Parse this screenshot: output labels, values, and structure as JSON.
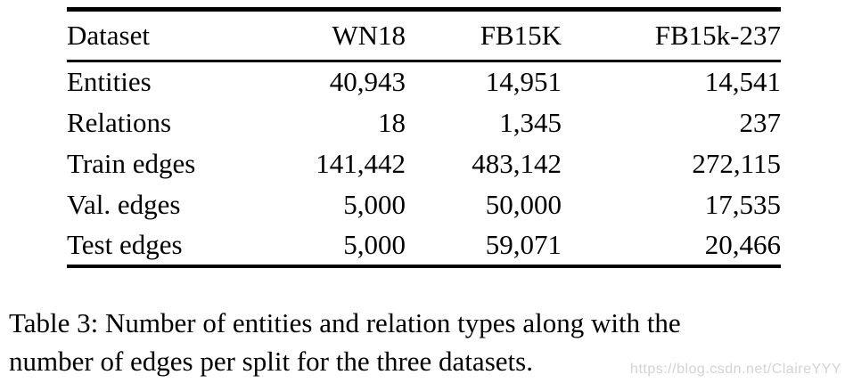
{
  "colors": {
    "background": "#ffffff",
    "text": "#000000",
    "rule": "#000000",
    "watermark": "#d3d3d3"
  },
  "table": {
    "columns": [
      "Dataset",
      "WN18",
      "FB15K",
      "FB15k-237"
    ],
    "rows": [
      {
        "label": "Entities",
        "values": [
          "40,943",
          "14,951",
          "14,541"
        ]
      },
      {
        "label": "Relations",
        "values": [
          "18",
          "1,345",
          "237"
        ]
      },
      {
        "label": "Train edges",
        "values": [
          "141,442",
          "483,142",
          "272,115"
        ]
      },
      {
        "label": "Val. edges",
        "values": [
          "5,000",
          "50,000",
          "17,535"
        ]
      },
      {
        "label": "Test edges",
        "values": [
          "5,000",
          "59,071",
          "20,466"
        ]
      }
    ]
  },
  "caption": {
    "line1": "Table 3: Number of entities and relation types along with the",
    "line2": "number of edges per split for the three datasets."
  },
  "watermark": {
    "text": "https://blog.csdn.net/ClaireYYY"
  }
}
